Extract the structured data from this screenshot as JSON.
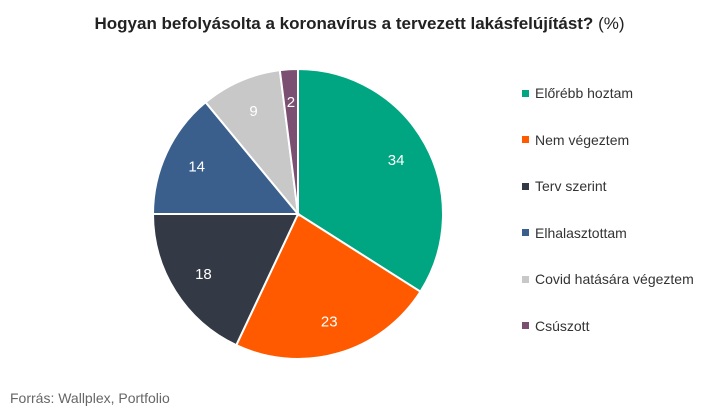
{
  "chart_data": {
    "type": "pie",
    "title": "Hogyan befolyásolta a koronavírus a tervezett lakásfelújítást?",
    "unit": "(%)",
    "categories": [
      "Előrébb hoztam",
      "Nem végeztem",
      "Terv szerint",
      "Elhalasztottam",
      "Covid hatására végeztem",
      "Csúszott"
    ],
    "values": [
      34,
      23,
      18,
      14,
      9,
      2
    ],
    "colors": [
      "#00a682",
      "#ff5a00",
      "#333a45",
      "#3b5f8c",
      "#c8c8c8",
      "#7a4f72"
    ],
    "legend_position": "right",
    "source": "Forrás: Wallplex, Portfolio"
  }
}
